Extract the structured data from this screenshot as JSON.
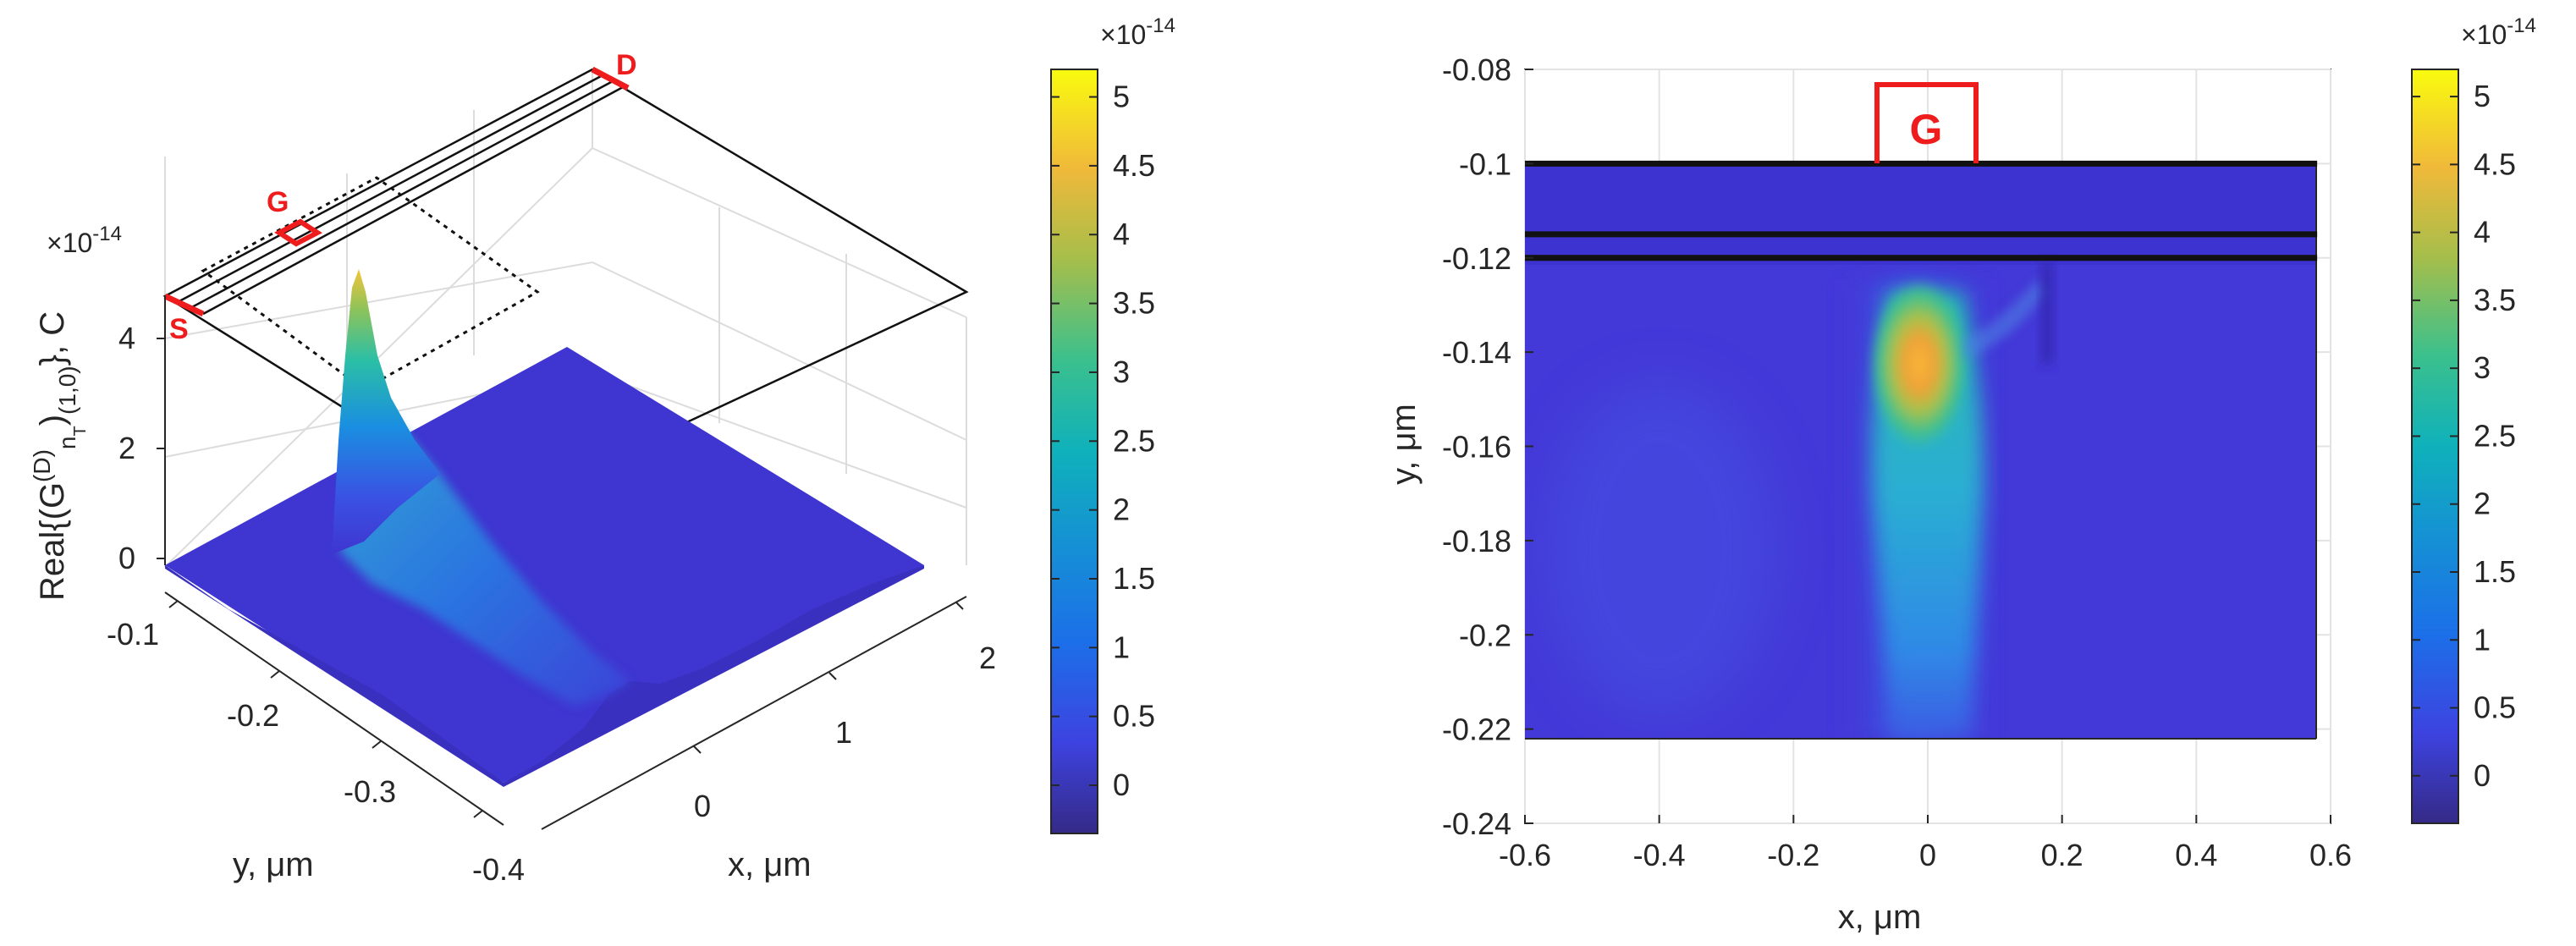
{
  "chart_data": [
    {
      "type": "surface",
      "panel": "left",
      "xlabel": "x, μm",
      "ylabel": "y, μm",
      "zlabel": "Real{(G^(D)_nT)_(1,0)}, C",
      "zlabel_parts": {
        "pre": "Real{(G",
        "sup": "(D)",
        "sub1": "n",
        "sub2": "T",
        "post": ")",
        "sub3": "(1,0)",
        "tail": "}, C"
      },
      "z_exponent_label": "×10",
      "z_exponent_power": "-14",
      "xticks": [
        "0",
        "1",
        "2"
      ],
      "yticks": [
        "-0.1",
        "-0.2",
        "-0.3",
        "-0.4"
      ],
      "zticks": [
        "0",
        "2",
        "4"
      ],
      "zlim": [
        0,
        5.2
      ],
      "peak": {
        "x": 0,
        "y": -0.14,
        "z": 4.6
      },
      "markers": [
        "S",
        "G",
        "D"
      ],
      "colorbar": {
        "ticks": [
          "0",
          "0.5",
          "1",
          "1.5",
          "2",
          "2.5",
          "3",
          "3.5",
          "4",
          "4.5",
          "5"
        ],
        "exponent_label": "×10",
        "exponent_power": "-14",
        "range": [
          -0.35,
          5.2
        ]
      }
    },
    {
      "type": "heatmap",
      "panel": "right",
      "xlabel": "x, μm",
      "ylabel": "y, μm",
      "xticks": [
        "-0.6",
        "-0.4",
        "-0.2",
        "0",
        "0.2",
        "0.4",
        "0.6"
      ],
      "yticks": [
        "-0.08",
        "-0.1",
        "-0.12",
        "-0.14",
        "-0.16",
        "-0.18",
        "-0.2",
        "-0.22",
        "-0.24"
      ],
      "xlim": [
        -0.6,
        0.6
      ],
      "ylim": [
        -0.24,
        -0.08
      ],
      "domain": {
        "x": [
          -0.6,
          0.58
        ],
        "y": [
          -0.221,
          -0.1
        ]
      },
      "layer_lines_y": [
        -0.1,
        -0.115,
        -0.12
      ],
      "gate_label": "G",
      "peak": {
        "x": -0.02,
        "y": -0.143,
        "value": 4.6
      },
      "grid": true,
      "colorbar": {
        "ticks": [
          "0",
          "0.5",
          "1",
          "1.5",
          "2",
          "2.5",
          "3",
          "3.5",
          "4",
          "4.5",
          "5"
        ],
        "exponent_label": "×10",
        "exponent_power": "-14",
        "range": [
          -0.35,
          5.2
        ]
      }
    }
  ],
  "colors": {
    "base": "#3f35d0",
    "peak": "#f4a32e",
    "marker": "#ee1c1c",
    "axis": "#262626"
  }
}
